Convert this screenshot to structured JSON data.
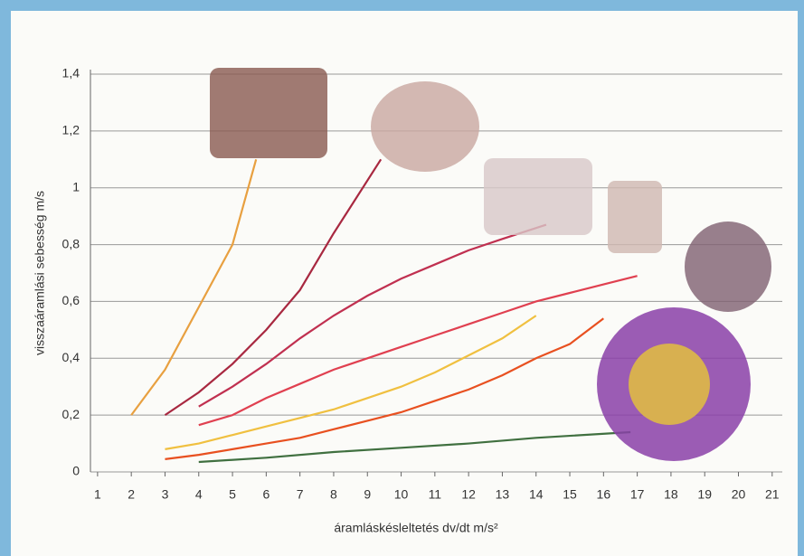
{
  "chart_data": {
    "type": "line",
    "x_label": "áramláskésleltetés dv/dt m/s²",
    "y_label": "visszaáramlási sebesség m/s",
    "xlim": [
      0.4,
      21.3
    ],
    "xticks": [
      1,
      2,
      3,
      4,
      5,
      6,
      7,
      8,
      9,
      10,
      11,
      12,
      13,
      14,
      15,
      16,
      17,
      18,
      19,
      20,
      21
    ],
    "ylim": [
      0,
      1.4
    ],
    "yticks": [
      0,
      {
        "value": 0.2,
        "label": "0,2"
      },
      {
        "value": 0.4,
        "label": "0,4"
      },
      {
        "value": 0.6,
        "label": "0,6"
      },
      {
        "value": 0.8,
        "label": "0,8"
      },
      1,
      {
        "value": 1.2,
        "label": "1,2"
      },
      {
        "value": 1.4,
        "label": "1,4"
      }
    ],
    "grid": true,
    "series": [
      {
        "color": "#e8a040",
        "x": [
          2,
          3,
          4,
          5,
          5.7
        ],
        "values": [
          0.2,
          0.36,
          0.58,
          0.8,
          1.1
        ]
      },
      {
        "color": "#a82840",
        "x": [
          3,
          4,
          5,
          6,
          7,
          8,
          9.4
        ],
        "values": [
          0.2,
          0.28,
          0.38,
          0.5,
          0.64,
          0.84,
          1.1
        ]
      },
      {
        "color": "#c03050",
        "x": [
          4,
          5,
          6,
          7,
          8,
          9,
          10,
          11,
          12,
          13,
          14.3
        ],
        "values": [
          0.23,
          0.3,
          0.38,
          0.47,
          0.55,
          0.62,
          0.68,
          0.73,
          0.78,
          0.82,
          0.87
        ]
      },
      {
        "color": "#e04050",
        "x": [
          4,
          5,
          6,
          7,
          8,
          9,
          10,
          11,
          12,
          13,
          14,
          15,
          16,
          17
        ],
        "values": [
          0.165,
          0.2,
          0.26,
          0.31,
          0.36,
          0.4,
          0.44,
          0.48,
          0.52,
          0.56,
          0.6,
          0.63,
          0.66,
          0.69
        ]
      },
      {
        "color": "#f0c040",
        "x": [
          3,
          4,
          5,
          6,
          7,
          8,
          9,
          10,
          11,
          12,
          13,
          14
        ],
        "values": [
          0.08,
          0.1,
          0.13,
          0.16,
          0.19,
          0.22,
          0.26,
          0.3,
          0.35,
          0.41,
          0.47,
          0.55
        ]
      },
      {
        "color": "#e85020",
        "x": [
          3,
          4,
          5,
          6,
          7,
          8,
          9,
          10,
          11,
          12,
          13,
          14,
          15,
          16
        ],
        "values": [
          0.045,
          0.06,
          0.08,
          0.1,
          0.12,
          0.15,
          0.18,
          0.21,
          0.25,
          0.29,
          0.34,
          0.4,
          0.45,
          0.54
        ]
      },
      {
        "color": "#407040",
        "x": [
          4,
          6,
          8,
          10,
          12,
          14,
          16.8
        ],
        "values": [
          0.035,
          0.05,
          0.07,
          0.085,
          0.1,
          0.12,
          0.14
        ]
      }
    ]
  }
}
